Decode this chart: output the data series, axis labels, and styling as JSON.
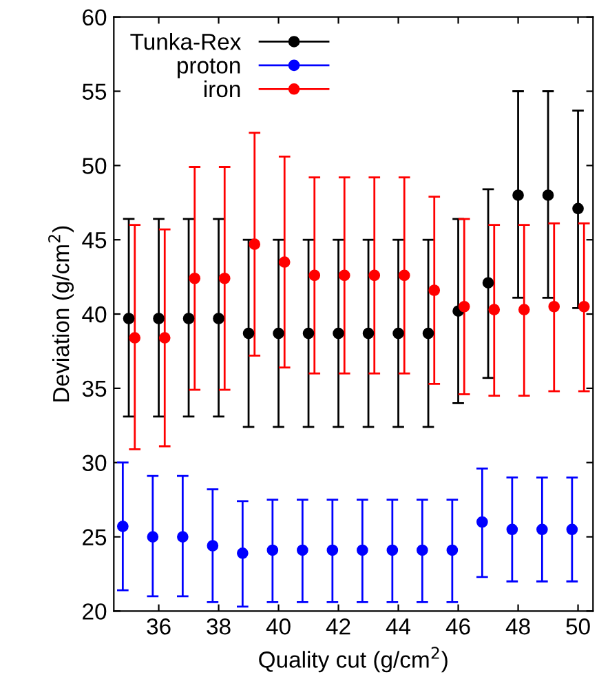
{
  "chart_data": {
    "type": "scatter",
    "xlabel": "Quality cut (g/cm$^{2}$)",
    "ylabel": "Deviation (g/cm$^{2}$)",
    "xlim": [
      34.5,
      50.5
    ],
    "xticks": [
      36,
      38,
      40,
      42,
      44,
      46,
      48,
      50
    ],
    "ylim": [
      20,
      60
    ],
    "yticks": [
      20,
      25,
      30,
      35,
      40,
      45,
      50,
      55,
      60
    ],
    "grid": false,
    "legend": "top left",
    "marker": "circle",
    "series": [
      {
        "name": "Tunka-Rex",
        "color": "#000000",
        "x": [
          35,
          36,
          37,
          38,
          39,
          40,
          41,
          42,
          43,
          44,
          45,
          46,
          47,
          48,
          49,
          50
        ],
        "values": [
          39.7,
          39.7,
          39.7,
          39.7,
          38.7,
          38.7,
          38.7,
          38.7,
          38.7,
          38.7,
          38.7,
          40.2,
          42.1,
          48,
          48,
          47.1
        ],
        "errors": [
          [
            33.1,
            46.4
          ],
          [
            33.1,
            46.4
          ],
          [
            33.1,
            46.4
          ],
          [
            33.1,
            46.4
          ],
          [
            32.4,
            45
          ],
          [
            32.4,
            45
          ],
          [
            32.4,
            45
          ],
          [
            32.4,
            45
          ],
          [
            32.4,
            45
          ],
          [
            32.4,
            45
          ],
          [
            32.4,
            45
          ],
          [
            34,
            46.4
          ],
          [
            35.7,
            48.4
          ],
          [
            41.1,
            55
          ],
          [
            41.1,
            55
          ],
          [
            40.4,
            53.7
          ]
        ]
      },
      {
        "name": "proton",
        "color": "#0000ff",
        "x": [
          34.8,
          35.8,
          36.8,
          37.8,
          38.8,
          39.8,
          40.8,
          41.8,
          42.8,
          43.8,
          44.8,
          45.8,
          46.8,
          47.8,
          48.8,
          49.8
        ],
        "values": [
          25.7,
          25,
          25,
          24.4,
          23.9,
          24.1,
          24.1,
          24.1,
          24.1,
          24.1,
          24.1,
          24.1,
          26,
          25.5,
          25.5,
          25.5
        ],
        "errors": [
          [
            21.4,
            30
          ],
          [
            21,
            29.1
          ],
          [
            21,
            29.1
          ],
          [
            20.6,
            28.2
          ],
          [
            20.3,
            27.4
          ],
          [
            20.6,
            27.5
          ],
          [
            20.6,
            27.5
          ],
          [
            20.6,
            27.5
          ],
          [
            20.6,
            27.5
          ],
          [
            20.6,
            27.5
          ],
          [
            20.6,
            27.5
          ],
          [
            20.6,
            27.5
          ],
          [
            22.3,
            29.6
          ],
          [
            22,
            29
          ],
          [
            22,
            29
          ],
          [
            22,
            29
          ]
        ]
      },
      {
        "name": "iron",
        "color": "#ff0000",
        "x": [
          35.2,
          36.2,
          37.2,
          38.2,
          39.2,
          40.2,
          41.2,
          42.2,
          43.2,
          44.2,
          45.2,
          46.2,
          47.2,
          48.2,
          49.2,
          50.2
        ],
        "values": [
          38.4,
          38.4,
          42.4,
          42.4,
          44.7,
          43.5,
          42.6,
          42.6,
          42.6,
          42.6,
          41.6,
          40.5,
          40.3,
          40.3,
          40.5,
          40.5
        ],
        "errors": [
          [
            30.9,
            46
          ],
          [
            31.1,
            45.7
          ],
          [
            34.9,
            49.9
          ],
          [
            34.9,
            49.9
          ],
          [
            37.2,
            52.2
          ],
          [
            36.4,
            50.6
          ],
          [
            36,
            49.2
          ],
          [
            36,
            49.2
          ],
          [
            36,
            49.2
          ],
          [
            36,
            49.2
          ],
          [
            35.3,
            47.9
          ],
          [
            34.6,
            46.4
          ],
          [
            34.5,
            46
          ],
          [
            34.5,
            46
          ],
          [
            34.8,
            46.1
          ],
          [
            34.8,
            46.1
          ]
        ]
      }
    ]
  }
}
